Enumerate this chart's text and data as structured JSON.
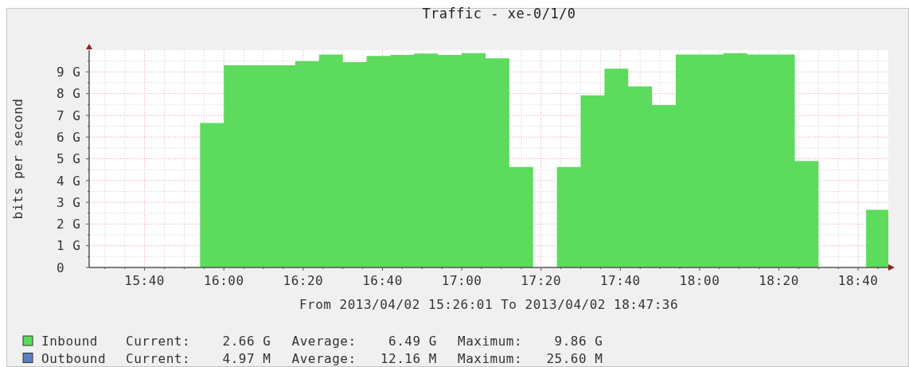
{
  "chart_data": {
    "type": "area",
    "title": "Traffic - xe-0/1/0",
    "xlabel": "From 2013/04/02 15:26:01 To 2013/04/02 18:47:36",
    "ylabel": "bits per second",
    "x": [
      15.9,
      16,
      16,
      16.3,
      16.3,
      16.4,
      16.4,
      16.5,
      16.5,
      16.6,
      16.6,
      16.7,
      16.7,
      16.8,
      16.8,
      16.9,
      16.9,
      17,
      17,
      17.1,
      17.1,
      17.2,
      17.2,
      17.3,
      17.3,
      17.4,
      17.4,
      17.5,
      17.5,
      17.6,
      17.6,
      17.7,
      17.7,
      17.8,
      17.8,
      17.9,
      17.9,
      18.1,
      18.1,
      18.2,
      18.2,
      18.4,
      18.4,
      18.5,
      18.5,
      18.7,
      18.7,
      18.7933
    ],
    "series": [
      {
        "name": "Inbound",
        "color": "#5cdb5c",
        "values": [
          6.65,
          6.65,
          9.3,
          9.3,
          9.5,
          9.5,
          9.8,
          9.8,
          9.45,
          9.45,
          9.73,
          9.73,
          9.78,
          9.78,
          9.84,
          9.84,
          9.78,
          9.78,
          9.86,
          9.86,
          9.62,
          9.62,
          4.62,
          4.62,
          0,
          0,
          4.62,
          4.62,
          7.92,
          7.92,
          9.15,
          9.15,
          8.33,
          8.33,
          7.47,
          7.47,
          9.8,
          9.8,
          9.86,
          9.86,
          9.8,
          9.8,
          4.9,
          4.9,
          0,
          0,
          2.66,
          2.66
        ]
      },
      {
        "name": "Outbound",
        "color": "#5a7ec1",
        "values": [
          null,
          null,
          null,
          null,
          null,
          null,
          null,
          null,
          null,
          null,
          null,
          null,
          null,
          null,
          null,
          null,
          null,
          null,
          null,
          null,
          null,
          null,
          null,
          null,
          null,
          null,
          null,
          null,
          null,
          null,
          null,
          null,
          null,
          null,
          null,
          null,
          null,
          null,
          null,
          null,
          null,
          null,
          null,
          null,
          null,
          null,
          null,
          null
        ]
      }
    ],
    "xlim": [
      15.4336,
      18.7933
    ],
    "xticks": [
      {
        "value": 15.5,
        "label": null
      },
      {
        "value": 15.5833,
        "label": null
      },
      {
        "value": 15.6667,
        "label": "15:40"
      },
      {
        "value": 15.75,
        "label": null
      },
      {
        "value": 15.8333,
        "label": null
      },
      {
        "value": 15.9167,
        "label": null
      },
      {
        "value": 16,
        "label": "16:00"
      },
      {
        "value": 16.0833,
        "label": null
      },
      {
        "value": 16.1667,
        "label": null
      },
      {
        "value": 16.25,
        "label": null
      },
      {
        "value": 16.3333,
        "label": "16:20"
      },
      {
        "value": 16.4167,
        "label": null
      },
      {
        "value": 16.5,
        "label": null
      },
      {
        "value": 16.5833,
        "label": null
      },
      {
        "value": 16.6667,
        "label": "16:40"
      },
      {
        "value": 16.75,
        "label": null
      },
      {
        "value": 16.8333,
        "label": null
      },
      {
        "value": 16.9167,
        "label": null
      },
      {
        "value": 17,
        "label": "17:00"
      },
      {
        "value": 17.0833,
        "label": null
      },
      {
        "value": 17.1667,
        "label": null
      },
      {
        "value": 17.25,
        "label": null
      },
      {
        "value": 17.3333,
        "label": "17:20"
      },
      {
        "value": 17.4167,
        "label": null
      },
      {
        "value": 17.5,
        "label": null
      },
      {
        "value": 17.5833,
        "label": null
      },
      {
        "value": 17.6667,
        "label": "17:40"
      },
      {
        "value": 17.75,
        "label": null
      },
      {
        "value": 17.8333,
        "label": null
      },
      {
        "value": 17.9167,
        "label": null
      },
      {
        "value": 18,
        "label": "18:00"
      },
      {
        "value": 18.0833,
        "label": null
      },
      {
        "value": 18.1667,
        "label": null
      },
      {
        "value": 18.25,
        "label": null
      },
      {
        "value": 18.3333,
        "label": "18:20"
      },
      {
        "value": 18.4167,
        "label": null
      },
      {
        "value": 18.5,
        "label": null
      },
      {
        "value": 18.5833,
        "label": null
      },
      {
        "value": 18.6667,
        "label": "18:40"
      },
      {
        "value": 18.75,
        "label": null
      }
    ],
    "ylim": [
      0,
      10
    ],
    "yticks": [
      0,
      {
        "value": 0.5,
        "label": null
      },
      {
        "value": 1,
        "label": "1 G"
      },
      {
        "value": 1.5,
        "label": null
      },
      {
        "value": 2,
        "label": "2 G"
      },
      {
        "value": 2.5,
        "label": null
      },
      {
        "value": 3,
        "label": "3 G"
      },
      {
        "value": 3.5,
        "label": null
      },
      {
        "value": 4,
        "label": "4 G"
      },
      {
        "value": 4.5,
        "label": null
      },
      {
        "value": 5,
        "label": "5 G"
      },
      {
        "value": 5.5,
        "label": null
      },
      {
        "value": 6,
        "label": "6 G"
      },
      {
        "value": 6.5,
        "label": null
      },
      {
        "value": 7,
        "label": "7 G"
      },
      {
        "value": 7.5,
        "label": null
      },
      {
        "value": 8,
        "label": "8 G"
      },
      {
        "value": 8.5,
        "label": null
      },
      {
        "value": 9,
        "label": "9 G"
      },
      {
        "value": 9.5,
        "label": null
      }
    ],
    "grid": true,
    "legend": "bottom",
    "annotations": [
      "Current:    2.66 G",
      "Average:    6.49 G",
      "Maximum:    9.86 G",
      "Current:    4.97 M",
      "Average:   12.16 M",
      "Maximum:   25.60 M"
    ]
  }
}
